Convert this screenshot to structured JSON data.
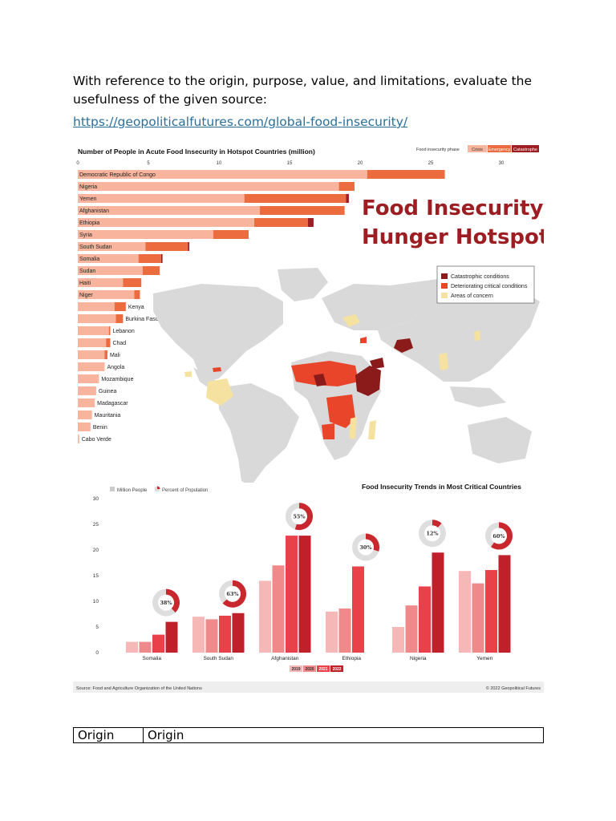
{
  "document": {
    "prompt": "With reference to the origin, purpose, value, and limitations, evaluate the usefulness of the given source:",
    "link": "https://geopoliticalfutures.com/global-food-insecurity/"
  },
  "infographic": {
    "main_title": [
      "Food Insecurity &",
      "Hunger Hotspots"
    ],
    "map_legend": [
      {
        "label": "Catastrophic conditions",
        "color": "#8b1a1a"
      },
      {
        "label": "Deteriorating critical conditions",
        "color": "#e8452a"
      },
      {
        "label": "Areas of concern",
        "color": "#f6e2a0"
      }
    ],
    "source": "Source: Food and Agriculture Organization of the United Nations",
    "copyright": "© 2022 Geopolitical Futures",
    "colors": {
      "crisis": "#f8b49d",
      "emergency": "#ec6b3f",
      "catastrophe": "#9c1d22",
      "map_land": "#d9d9d9"
    }
  },
  "chart_data": [
    {
      "type": "bar",
      "orientation": "horizontal-stacked",
      "title": "Number of People in Acute Food Insecurity in Hotspot Countries (million)",
      "legend_title": "Food insecurity phase",
      "xlim": [
        0,
        30
      ],
      "xticks": [
        0,
        5,
        10,
        15,
        20,
        25,
        30
      ],
      "categories": [
        "Democratic Republic of Congo",
        "Nigeria",
        "Yemen",
        "Afghanistan",
        "Ethiopia",
        "Syria",
        "South Sudan",
        "Somalia",
        "Sudan",
        "Haiti",
        "Niger",
        "Kenya",
        "Burkina Faso",
        "Lebanon",
        "Chad",
        "Mali",
        "Angola",
        "Mozambique",
        "Guinea",
        "Madagascar",
        "Mauritania",
        "Benin",
        "Cabo Verde"
      ],
      "series": [
        {
          "name": "Crisis",
          "values": [
            20.5,
            18.5,
            11.8,
            12.9,
            12.5,
            9.6,
            4.8,
            4.3,
            4.6,
            3.2,
            4.0,
            2.6,
            2.7,
            2.2,
            2.0,
            1.9,
            1.9,
            1.5,
            1.3,
            1.2,
            1.0,
            0.9,
            0.1
          ]
        },
        {
          "name": "Emergency",
          "values": [
            5.5,
            1.1,
            7.2,
            6.0,
            3.8,
            2.5,
            3.0,
            1.6,
            1.2,
            1.3,
            0.4,
            0.8,
            0.5,
            0.1,
            0.3,
            0.2,
            0.0,
            0.0,
            0.0,
            0.0,
            0.0,
            0.0,
            0.0
          ]
        },
        {
          "name": "Catastrophe",
          "values": [
            0,
            0,
            0.2,
            0,
            0.4,
            0,
            0.1,
            0.1,
            0,
            0,
            0,
            0,
            0,
            0,
            0,
            0,
            0,
            0,
            0,
            0,
            0,
            0,
            0
          ]
        }
      ]
    },
    {
      "type": "bar",
      "title": "Food Insecurity Trends in Most Critical Countries",
      "legend": [
        "Million People",
        "Percent of Population"
      ],
      "years": [
        "2019",
        "2020",
        "2021",
        "2022"
      ],
      "ylim": [
        0,
        30
      ],
      "yticks": [
        0,
        5,
        10,
        15,
        20,
        25,
        30
      ],
      "categories": [
        "Somalia",
        "South Sudan",
        "Afghanistan",
        "Ethiopia",
        "Nigeria",
        "Yemen"
      ],
      "series": [
        {
          "name": "2019",
          "values": [
            2.1,
            7.0,
            14.0,
            8.0,
            5.0,
            15.9
          ]
        },
        {
          "name": "2020",
          "values": [
            2.1,
            6.5,
            17.0,
            8.6,
            9.2,
            13.5
          ]
        },
        {
          "name": "2021",
          "values": [
            3.5,
            7.2,
            22.8,
            16.8,
            12.9,
            16.1
          ]
        },
        {
          "name": "2022",
          "values": [
            6.0,
            7.7,
            22.8,
            0,
            19.5,
            19.0
          ]
        }
      ],
      "percent_of_population": [
        "38%",
        "63%",
        "55%",
        "30%",
        "12%",
        "60%"
      ],
      "percent_values": [
        38,
        63,
        55,
        30,
        12,
        60
      ]
    }
  ],
  "table": {
    "rows": [
      [
        "Origin",
        "Origin"
      ]
    ]
  }
}
